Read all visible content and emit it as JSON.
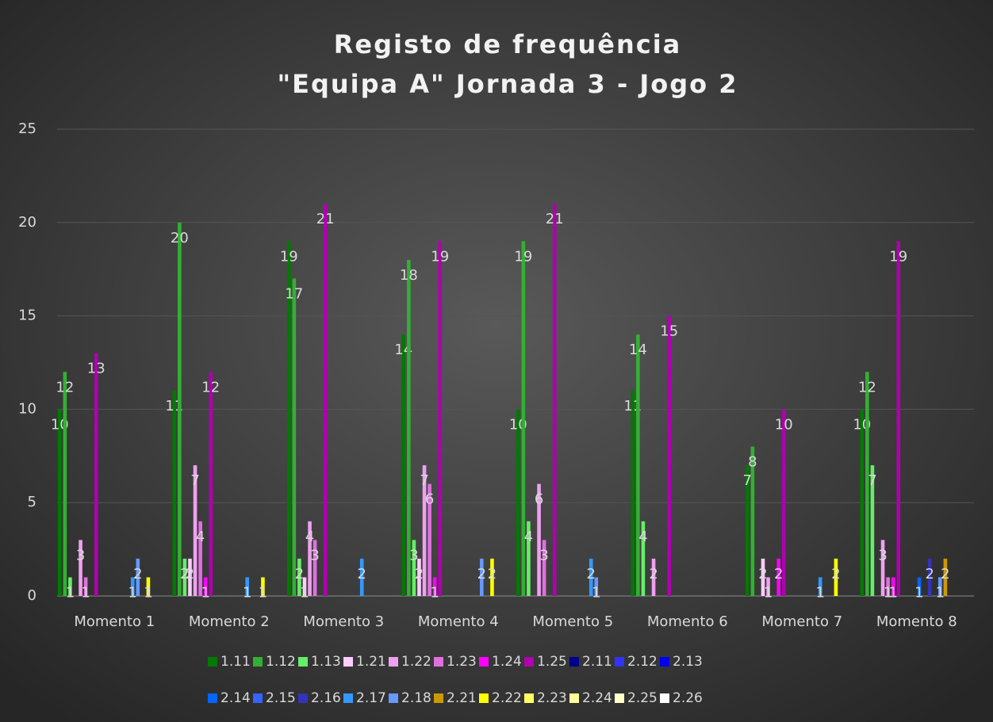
{
  "chart_data": {
    "type": "bar",
    "title": "Registo de frequência",
    "subtitle": "\"Equipa A\" Jornada 3 - Jogo 2",
    "categories": [
      "Momento 1",
      "Momento 2",
      "Momento 3",
      "Momento 4",
      "Momento 5",
      "Momento 6",
      "Momento 7",
      "Momento 8"
    ],
    "series": [
      {
        "name": "1.11",
        "color": "#007a00",
        "values": [
          10,
          11,
          19,
          14,
          10,
          11,
          7,
          10
        ]
      },
      {
        "name": "1.12",
        "color": "#33b033",
        "values": [
          12,
          20,
          17,
          18,
          19,
          14,
          8,
          12
        ]
      },
      {
        "name": "1.13",
        "color": "#66ee66",
        "values": [
          1,
          2,
          2,
          3,
          4,
          4,
          null,
          7
        ]
      },
      {
        "name": "1.21",
        "color": "#ffccff",
        "values": [
          null,
          2,
          1,
          2,
          null,
          null,
          2,
          null
        ]
      },
      {
        "name": "1.22",
        "color": "#f0a0f0",
        "values": [
          3,
          7,
          4,
          7,
          6,
          2,
          1,
          3
        ]
      },
      {
        "name": "1.23",
        "color": "#e070e0",
        "values": [
          1,
          4,
          3,
          6,
          3,
          null,
          null,
          1
        ]
      },
      {
        "name": "1.24",
        "color": "#ff00ff",
        "values": [
          null,
          1,
          null,
          1,
          null,
          null,
          2,
          1
        ]
      },
      {
        "name": "1.25",
        "color": "#b000b0",
        "values": [
          13,
          12,
          21,
          19,
          21,
          15,
          10,
          19
        ]
      },
      {
        "name": "2.11",
        "color": "#00008b",
        "values": [
          null,
          null,
          null,
          null,
          null,
          null,
          null,
          null
        ]
      },
      {
        "name": "2.12",
        "color": "#3333ff",
        "values": [
          null,
          null,
          null,
          null,
          null,
          null,
          null,
          null
        ]
      },
      {
        "name": "2.13",
        "color": "#0000ee",
        "values": [
          null,
          null,
          null,
          null,
          null,
          null,
          null,
          null
        ]
      },
      {
        "name": "2.14",
        "color": "#0066ff",
        "values": [
          null,
          null,
          null,
          null,
          null,
          null,
          null,
          1
        ]
      },
      {
        "name": "2.15",
        "color": "#3366ff",
        "values": [
          null,
          null,
          null,
          null,
          null,
          null,
          null,
          null
        ]
      },
      {
        "name": "2.16",
        "color": "#3333bb",
        "values": [
          null,
          null,
          null,
          null,
          null,
          null,
          null,
          2
        ]
      },
      {
        "name": "2.17",
        "color": "#3399ff",
        "values": [
          1,
          1,
          2,
          null,
          2,
          null,
          1,
          null
        ]
      },
      {
        "name": "2.18",
        "color": "#6699ff",
        "values": [
          2,
          null,
          null,
          2,
          1,
          null,
          null,
          1
        ]
      },
      {
        "name": "2.21",
        "color": "#cc9900",
        "values": [
          null,
          null,
          null,
          null,
          null,
          null,
          null,
          2
        ]
      },
      {
        "name": "2.22",
        "color": "#ffff00",
        "values": [
          1,
          1,
          null,
          2,
          null,
          null,
          2,
          null
        ]
      },
      {
        "name": "2.23",
        "color": "#ffff66",
        "values": [
          null,
          null,
          null,
          null,
          null,
          null,
          null,
          null
        ]
      },
      {
        "name": "2.24",
        "color": "#ffff99",
        "values": [
          null,
          null,
          null,
          null,
          null,
          null,
          null,
          null
        ]
      },
      {
        "name": "2.25",
        "color": "#ffffcc",
        "values": [
          null,
          null,
          null,
          null,
          null,
          null,
          null,
          null
        ]
      },
      {
        "name": "2.26",
        "color": "#ffffff",
        "values": [
          null,
          null,
          null,
          null,
          null,
          null,
          null,
          null
        ]
      }
    ],
    "ylim": [
      0,
      25
    ],
    "yticks": [
      0,
      5,
      10,
      15,
      20,
      25
    ],
    "grid": true,
    "legend": "bottom"
  }
}
